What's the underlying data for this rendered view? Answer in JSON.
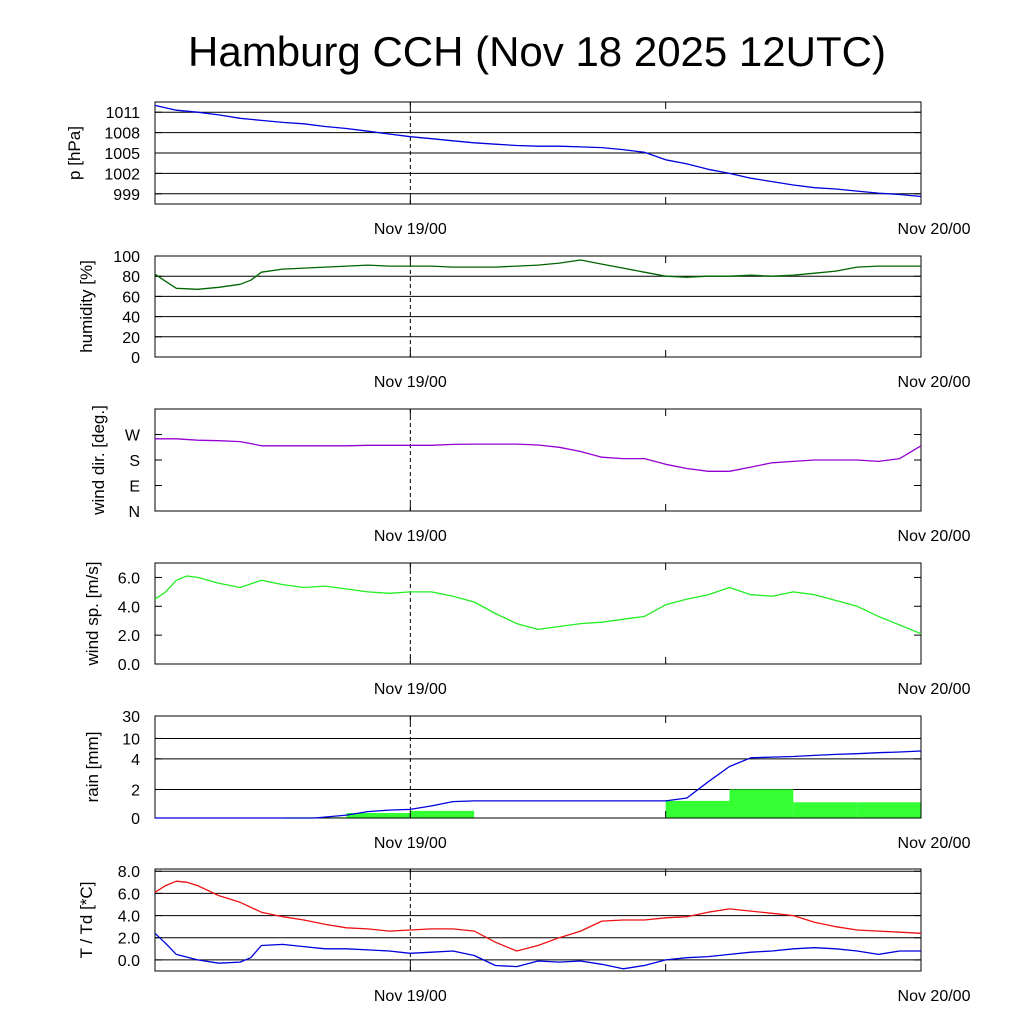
{
  "title": "Hamburg CCH (Nov 18 2025 12UTC)",
  "colors": {
    "pressure": "#0000dd",
    "humidity": "#006400",
    "wind_dir": "#9400d3",
    "wind_speed": "#22ee22",
    "rain_bars": "#33ff33",
    "rain_cum": "#0000dd",
    "temperature": "#ee1111",
    "dewpoint": "#0000dd"
  },
  "chart_data": [
    {
      "id": "pressure",
      "type": "line",
      "ylabel": "p [hPa]",
      "xlabels": [
        "Nov 19/00",
        "Nov 20/00"
      ],
      "ylim": [
        997.5,
        1012.5
      ],
      "yticks": [
        999,
        1002,
        1005,
        1008,
        1011
      ],
      "yticklabels": [
        "999",
        "1002",
        "1005",
        "1008",
        "1011"
      ],
      "grid": true,
      "series": [
        {
          "name": "pressure",
          "x": [
            0,
            1,
            2,
            3,
            4,
            5,
            6,
            7,
            8,
            9,
            10,
            11,
            12,
            13,
            14,
            15,
            16,
            17,
            18,
            19,
            20,
            21,
            22,
            23,
            24,
            25,
            26,
            27,
            28,
            29,
            30,
            31,
            32,
            33,
            34,
            35,
            36
          ],
          "values": [
            1012.0,
            1011.3,
            1011.0,
            1010.6,
            1010.1,
            1009.8,
            1009.5,
            1009.3,
            1008.9,
            1008.6,
            1008.2,
            1007.8,
            1007.4,
            1007.1,
            1006.8,
            1006.5,
            1006.3,
            1006.1,
            1006.0,
            1006.0,
            1005.9,
            1005.8,
            1005.5,
            1005.1,
            1004.0,
            1003.4,
            1002.6,
            1002.0,
            1001.3,
            1000.8,
            1000.3,
            999.9,
            999.7,
            999.4,
            999.1,
            998.9,
            998.6
          ]
        }
      ]
    },
    {
      "id": "humidity",
      "type": "line",
      "ylabel": "humidity [%]",
      "xlabels": [
        "Nov 19/00",
        "Nov 20/00"
      ],
      "ylim": [
        0,
        100
      ],
      "yticks": [
        0,
        20,
        40,
        60,
        80,
        100
      ],
      "yticklabels": [
        "0",
        "20",
        "40",
        "60",
        "80",
        "100"
      ],
      "grid": true,
      "series": [
        {
          "name": "humidity",
          "x": [
            0,
            0.5,
            1,
            2,
            3,
            4,
            4.5,
            5,
            6,
            7,
            8,
            9,
            10,
            11,
            12,
            13,
            14,
            15,
            16,
            17,
            18,
            19,
            20,
            21,
            22,
            23,
            24,
            25,
            26,
            27,
            28,
            29,
            30,
            31,
            32,
            33,
            34,
            35,
            36
          ],
          "values": [
            82,
            75,
            68,
            67,
            69,
            72,
            76,
            84,
            87,
            88,
            89,
            90,
            91,
            90,
            90,
            90,
            89,
            89,
            89,
            90,
            91,
            93,
            96,
            92,
            88,
            84,
            80,
            79,
            80,
            80,
            81,
            80,
            81,
            83,
            85,
            89,
            90,
            90,
            90
          ]
        }
      ]
    },
    {
      "id": "wind_dir",
      "type": "line",
      "ylabel": "wind dir. [deg.]",
      "xlabels": [
        "Nov 19/00",
        "Nov 20/00"
      ],
      "ylim": [
        0,
        360
      ],
      "yticks": [
        0,
        90,
        180,
        270
      ],
      "yticklabels": [
        "N",
        "E",
        "S",
        "W"
      ],
      "grid": false,
      "series": [
        {
          "name": "wind direction",
          "x": [
            0,
            1,
            2,
            3,
            4,
            4.5,
            5,
            6,
            7,
            8,
            9,
            10,
            11,
            12,
            13,
            14,
            15,
            16,
            17,
            18,
            19,
            20,
            21,
            22,
            23,
            24,
            25,
            26,
            27,
            28,
            29,
            30,
            31,
            32,
            33,
            34,
            35,
            36
          ],
          "values": [
            255,
            255,
            250,
            248,
            245,
            238,
            230,
            230,
            230,
            230,
            230,
            232,
            232,
            232,
            232,
            235,
            236,
            236,
            236,
            233,
            225,
            210,
            190,
            185,
            185,
            165,
            150,
            140,
            140,
            155,
            170,
            175,
            180,
            180,
            180,
            175,
            185,
            230
          ]
        }
      ]
    },
    {
      "id": "wind_speed",
      "type": "line",
      "ylabel": "wind sp. [m/s]",
      "xlabels": [
        "Nov 19/00",
        "Nov 20/00"
      ],
      "ylim": [
        0,
        7
      ],
      "yticks": [
        0,
        2,
        4,
        6
      ],
      "yticklabels": [
        "0.0",
        "2.0",
        "4.0",
        "6.0"
      ],
      "grid": false,
      "series": [
        {
          "name": "wind speed",
          "x": [
            0,
            0.5,
            1,
            1.5,
            2,
            3,
            4,
            5,
            6,
            7,
            8,
            9,
            10,
            11,
            12,
            13,
            14,
            15,
            16,
            17,
            18,
            19,
            20,
            21,
            22,
            23,
            24,
            25,
            26,
            27,
            28,
            29,
            30,
            31,
            32,
            33,
            34,
            35,
            36
          ],
          "values": [
            4.5,
            5.0,
            5.8,
            6.1,
            6.0,
            5.6,
            5.3,
            5.8,
            5.5,
            5.3,
            5.4,
            5.2,
            5.0,
            4.9,
            5.0,
            5.0,
            4.7,
            4.3,
            3.5,
            2.8,
            2.4,
            2.6,
            2.8,
            2.9,
            3.1,
            3.3,
            4.1,
            4.5,
            4.8,
            5.3,
            4.8,
            4.7,
            5.0,
            4.8,
            4.4,
            4.0,
            3.3,
            2.7,
            2.1
          ]
        }
      ]
    },
    {
      "id": "rain",
      "type": "bar",
      "ylabel": "rain [mm]",
      "xlabels": [
        "Nov 19/00",
        "Nov 20/00"
      ],
      "ylim": [
        0,
        30
      ],
      "yticks": [
        0,
        2,
        4,
        10,
        30
      ],
      "yticklabels": [
        "0",
        "2",
        "4",
        "10",
        "30"
      ],
      "grid": true,
      "bars": {
        "x_start": [
          6,
          9,
          12,
          15,
          18,
          21,
          24,
          27,
          30,
          33
        ],
        "x_end": [
          9,
          12,
          15,
          18,
          21,
          24,
          27,
          30,
          33,
          36
        ],
        "values": [
          0.05,
          0.35,
          0.5,
          0.0,
          0.0,
          0.0,
          1.2,
          2.0,
          1.1,
          1.1
        ]
      },
      "series": [
        {
          "name": "cumulative rain",
          "x": [
            0,
            7.5,
            9,
            10,
            11,
            12,
            13,
            14,
            15,
            18,
            21,
            24,
            25,
            26,
            27,
            28,
            29,
            30,
            31,
            32,
            33,
            34,
            35,
            36
          ],
          "values": [
            0,
            0,
            0.2,
            0.45,
            0.55,
            0.6,
            0.85,
            1.15,
            1.2,
            1.2,
            1.2,
            1.2,
            1.4,
            2.5,
            3.5,
            4.3,
            4.5,
            4.7,
            5.0,
            5.3,
            5.5,
            5.8,
            6.0,
            6.3
          ]
        }
      ]
    },
    {
      "id": "temperature",
      "type": "line",
      "ylabel": "T / Td [*C]",
      "xlabels": [
        "Nov 19/00",
        "Nov 20/00"
      ],
      "ylim": [
        -1,
        8.2
      ],
      "yticks": [
        0,
        2,
        4,
        6,
        8
      ],
      "yticklabels": [
        "0.0",
        "2.0",
        "4.0",
        "6.0",
        "8.0"
      ],
      "grid": true,
      "series": [
        {
          "name": "T",
          "x": [
            0,
            0.5,
            1,
            1.5,
            2,
            3,
            4,
            5,
            6,
            7,
            8,
            9,
            10,
            11,
            12,
            13,
            14,
            15,
            16,
            17,
            18,
            19,
            20,
            21,
            22,
            23,
            24,
            25,
            26,
            27,
            28,
            29,
            30,
            31,
            32,
            33,
            34,
            35,
            36
          ],
          "values": [
            6.1,
            6.7,
            7.1,
            7.0,
            6.7,
            5.8,
            5.2,
            4.3,
            3.9,
            3.6,
            3.2,
            2.9,
            2.8,
            2.6,
            2.7,
            2.8,
            2.8,
            2.6,
            1.6,
            0.8,
            1.3,
            2.0,
            2.6,
            3.5,
            3.6,
            3.6,
            3.8,
            3.9,
            4.3,
            4.6,
            4.4,
            4.2,
            4.0,
            3.4,
            3.0,
            2.7,
            2.6,
            2.5,
            2.4
          ]
        }
      ]
    },
    {
      "id": "dewpoint",
      "type": "line",
      "ylabel": "T / Td [*C]",
      "xlabels": [
        "Nov 19/00",
        "Nov 20/00"
      ],
      "ylim": [
        -1,
        8.2
      ],
      "yticks": [
        0,
        2,
        4,
        6,
        8
      ],
      "yticklabels": [
        "0.0",
        "2.0",
        "4.0",
        "6.0",
        "8.0"
      ],
      "grid": true,
      "series": [
        {
          "name": "Td",
          "x": [
            0,
            0.5,
            1,
            2,
            3,
            4,
            4.5,
            5,
            6,
            7,
            8,
            9,
            10,
            11,
            12,
            13,
            14,
            15,
            16,
            17,
            18,
            19,
            20,
            21,
            22,
            23,
            24,
            25,
            26,
            27,
            28,
            29,
            30,
            31,
            32,
            33,
            34,
            35,
            36
          ],
          "values": [
            2.4,
            1.5,
            0.5,
            0.0,
            -0.3,
            -0.2,
            0.2,
            1.3,
            1.4,
            1.2,
            1.0,
            1.0,
            0.9,
            0.8,
            0.6,
            0.7,
            0.8,
            0.4,
            -0.5,
            -0.6,
            -0.1,
            -0.2,
            -0.1,
            -0.4,
            -0.8,
            -0.5,
            0.0,
            0.2,
            0.3,
            0.5,
            0.7,
            0.8,
            1.0,
            1.1,
            1.0,
            0.8,
            0.5,
            0.8,
            0.8
          ]
        }
      ]
    }
  ]
}
